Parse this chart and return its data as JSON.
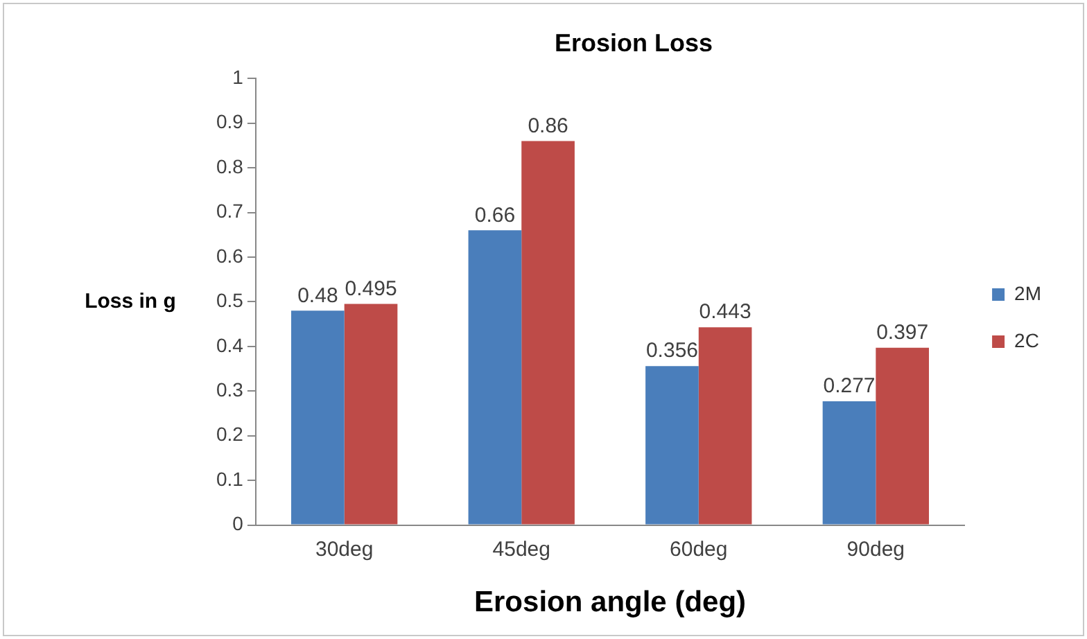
{
  "chart_data": {
    "type": "bar",
    "title": "Erosion Loss",
    "xlabel": "Erosion angle (deg)",
    "ylabel": "Loss in g",
    "categories": [
      "30deg",
      "45deg",
      "60deg",
      "90deg"
    ],
    "series": [
      {
        "name": "2M",
        "color": "#4a7ebb",
        "values": [
          0.48,
          0.66,
          0.356,
          0.277
        ]
      },
      {
        "name": "2C",
        "color": "#be4b48",
        "values": [
          0.495,
          0.86,
          0.443,
          0.397
        ]
      }
    ],
    "ylim": [
      0,
      1
    ],
    "yticks": [
      0,
      0.1,
      0.2,
      0.3,
      0.4,
      0.5,
      0.6,
      0.7,
      0.8,
      0.9,
      1
    ],
    "data_labels": true,
    "grid": false,
    "legend": "right"
  }
}
